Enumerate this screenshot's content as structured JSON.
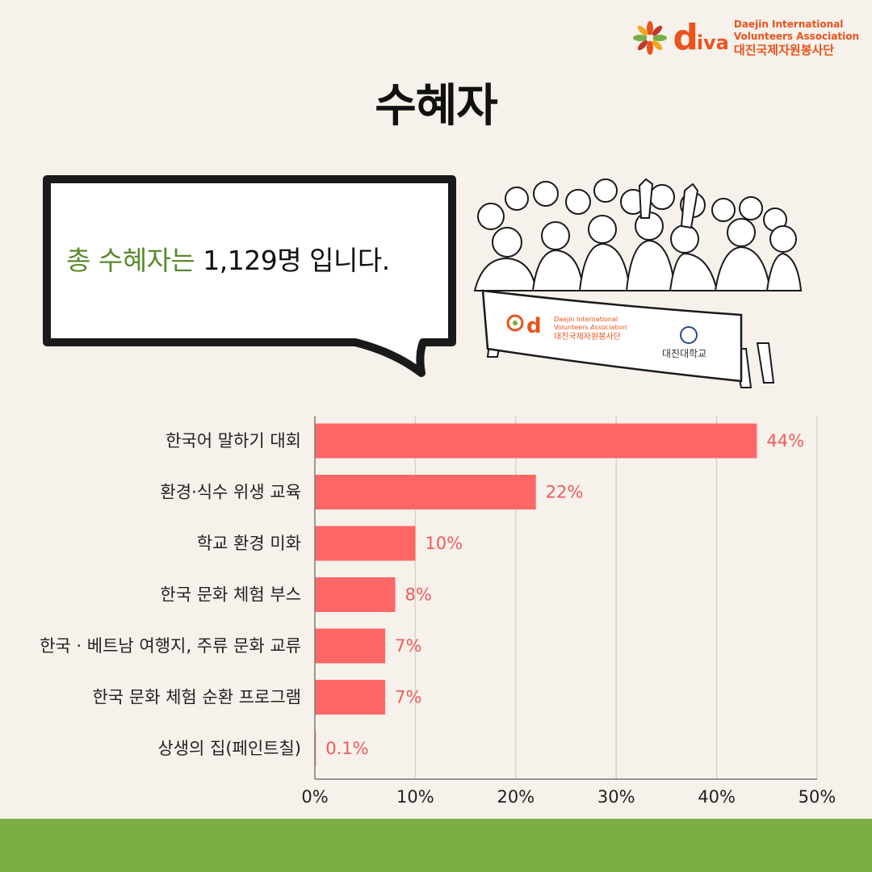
{
  "header": {
    "logo_word": "d",
    "logo_word_tail": "iva",
    "logo_en_line1": "Daejin International",
    "logo_en_line2": "Volunteers Association",
    "logo_kr": "대진국제자원봉사단"
  },
  "page_title": "수혜자",
  "bubble": {
    "highlight": "총 수혜자는",
    "rest": " 1,129명  입니다."
  },
  "banner": {
    "logo_en_line1": "Daejin International",
    "logo_en_line2": "Volunteers Association",
    "logo_kr": "대진국제자원봉사단",
    "university": "대진대학교"
  },
  "colors": {
    "bar": "#ff6666",
    "value_label": "#ef5c5c",
    "accent_green": "#5a8a2f",
    "footer": "#7cad45",
    "logo": "#e8531e"
  },
  "chart_data": {
    "type": "bar",
    "orientation": "horizontal",
    "categories": [
      "한국어 말하기 대회",
      "환경·식수 위생 교육",
      "학교 환경 미화",
      "한국 문화 체험 부스",
      "한국 · 베트남 여행지, 주류 문화 교류",
      "한국 문화 체험 순환 프로그램",
      "상생의 집(페인트칠)"
    ],
    "values": [
      44,
      22,
      10,
      8,
      7,
      7,
      0.1
    ],
    "value_labels": [
      "44%",
      "22%",
      "10%",
      "8%",
      "7%",
      "7%",
      "0.1%"
    ],
    "xlim": [
      0,
      50
    ],
    "xticks": [
      "0%",
      "10%",
      "20%",
      "30%",
      "40%",
      "50%"
    ],
    "grid": true
  }
}
